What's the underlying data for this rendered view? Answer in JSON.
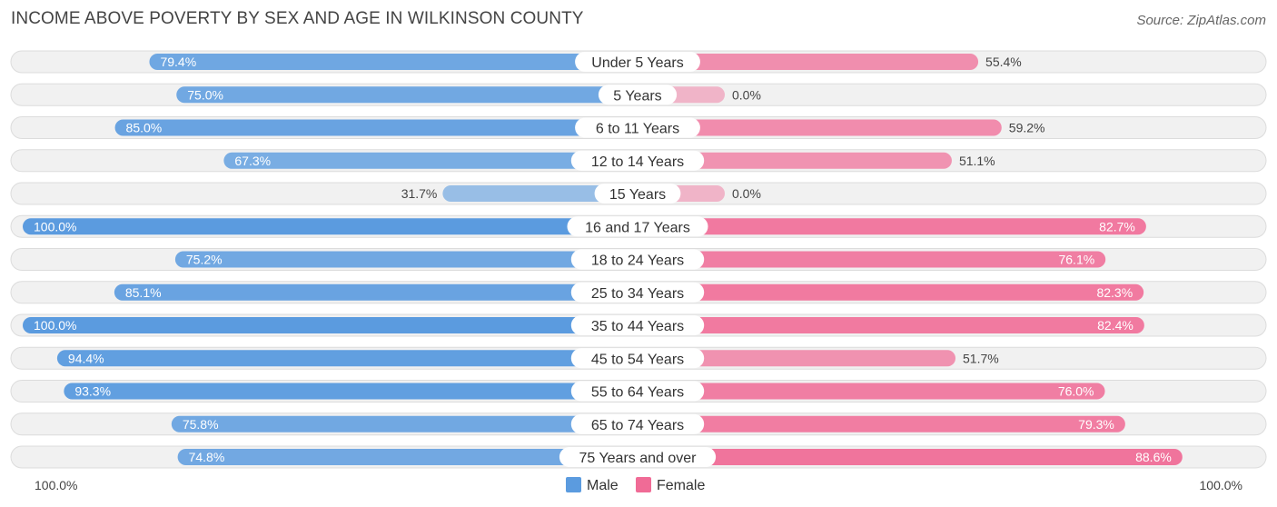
{
  "header": {
    "title": "INCOME ABOVE POVERTY BY SEX AND AGE IN WILKINSON COUNTY",
    "source": "Source: ZipAtlas.com"
  },
  "chart_data": {
    "type": "bar",
    "orientation": "horizontal-diverging",
    "title": "INCOME ABOVE POVERTY BY SEX AND AGE IN WILKINSON COUNTY",
    "categories": [
      "Under 5 Years",
      "5 Years",
      "6 to 11 Years",
      "12 to 14 Years",
      "15 Years",
      "16 and 17 Years",
      "18 to 24 Years",
      "25 to 34 Years",
      "35 to 44 Years",
      "45 to 54 Years",
      "55 to 64 Years",
      "65 to 74 Years",
      "75 Years and over"
    ],
    "series": [
      {
        "name": "Male",
        "color": "#5b9bdf",
        "values": [
          79.4,
          75.0,
          85.0,
          67.3,
          31.7,
          100.0,
          75.2,
          85.1,
          100.0,
          94.4,
          93.3,
          75.8,
          74.8
        ]
      },
      {
        "name": "Female",
        "color": "#f06b96",
        "values": [
          55.4,
          0.0,
          59.2,
          51.1,
          0.0,
          82.7,
          76.1,
          82.3,
          82.4,
          51.7,
          76.0,
          79.3,
          88.6
        ]
      }
    ],
    "xlim": [
      0,
      100
    ],
    "axis_labels": {
      "left": "100.0%",
      "right": "100.0%"
    },
    "legend": {
      "position": "bottom-center",
      "items": [
        "Male",
        "Female"
      ]
    },
    "value_suffix": "%"
  }
}
